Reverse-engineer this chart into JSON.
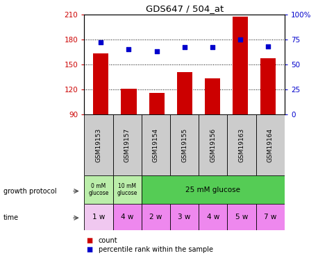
{
  "title": "GDS647 / 504_at",
  "samples": [
    "GSM19153",
    "GSM19157",
    "GSM19154",
    "GSM19155",
    "GSM19156",
    "GSM19163",
    "GSM19164"
  ],
  "bar_values": [
    163,
    121,
    116,
    141,
    133,
    207,
    157
  ],
  "scatter_values": [
    72,
    65,
    63,
    67,
    67,
    75,
    68
  ],
  "ylim_left": [
    90,
    210
  ],
  "ylim_right": [
    0,
    100
  ],
  "yticks_left": [
    90,
    120,
    150,
    180,
    210
  ],
  "yticks_right": [
    0,
    25,
    50,
    75,
    100
  ],
  "bar_color": "#cc0000",
  "scatter_color": "#0000cc",
  "hline_values": [
    120,
    150,
    180
  ],
  "time_labels": [
    "1 w",
    "4 w",
    "2 w",
    "3 w",
    "4 w",
    "5 w",
    "7 w"
  ],
  "time_color_first": "#f0c8f0",
  "time_color_rest": "#ee88ee",
  "growth_color_first": "#bbeeaa",
  "growth_color_second": "#bbeeaa",
  "growth_color_merged": "#55cc55",
  "gsm_bg": "#cccccc",
  "background_color": "#ffffff",
  "axis_label_color_left": "#cc0000",
  "axis_label_color_right": "#0000cc"
}
